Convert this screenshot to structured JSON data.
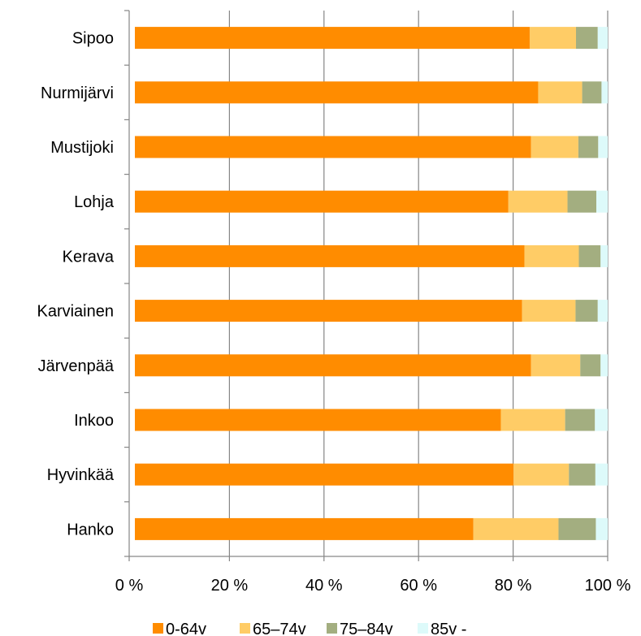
{
  "chart_data": {
    "type": "bar",
    "orientation": "horizontal",
    "stacked": true,
    "categories": [
      "Sipoo",
      "Nurmijärvi",
      "Mustijoki",
      "Lohja",
      "Kerava",
      "Karviainen",
      "Järvenpää",
      "Inkoo",
      "Hyvinkää",
      "Hanko"
    ],
    "series": [
      {
        "name": "0-64v",
        "color": "#FF8C00",
        "values": [
          83.5,
          85.3,
          83.8,
          79.0,
          82.4,
          81.9,
          83.8,
          77.4,
          80.1,
          71.6
        ]
      },
      {
        "name": "65–74v",
        "color": "#FFCC66",
        "values": [
          9.8,
          9.3,
          10.0,
          12.5,
          11.5,
          11.3,
          10.4,
          13.6,
          11.7,
          18.0
        ]
      },
      {
        "name": "75–84v",
        "color": "#A3AE80",
        "values": [
          4.6,
          4.1,
          4.2,
          6.1,
          4.6,
          4.7,
          4.3,
          6.3,
          5.6,
          7.9
        ]
      },
      {
        "name": "85v -",
        "color": "#DDFAFA",
        "values": [
          2.1,
          1.3,
          2.0,
          2.4,
          1.5,
          2.1,
          1.5,
          2.7,
          2.6,
          2.5
        ]
      }
    ],
    "x_ticks": [
      "0 %",
      "20 %",
      "40 %",
      "60 %",
      "80 %",
      "100 %"
    ],
    "xlim": [
      0,
      100
    ],
    "grid": true,
    "legend_position": "bottom"
  }
}
